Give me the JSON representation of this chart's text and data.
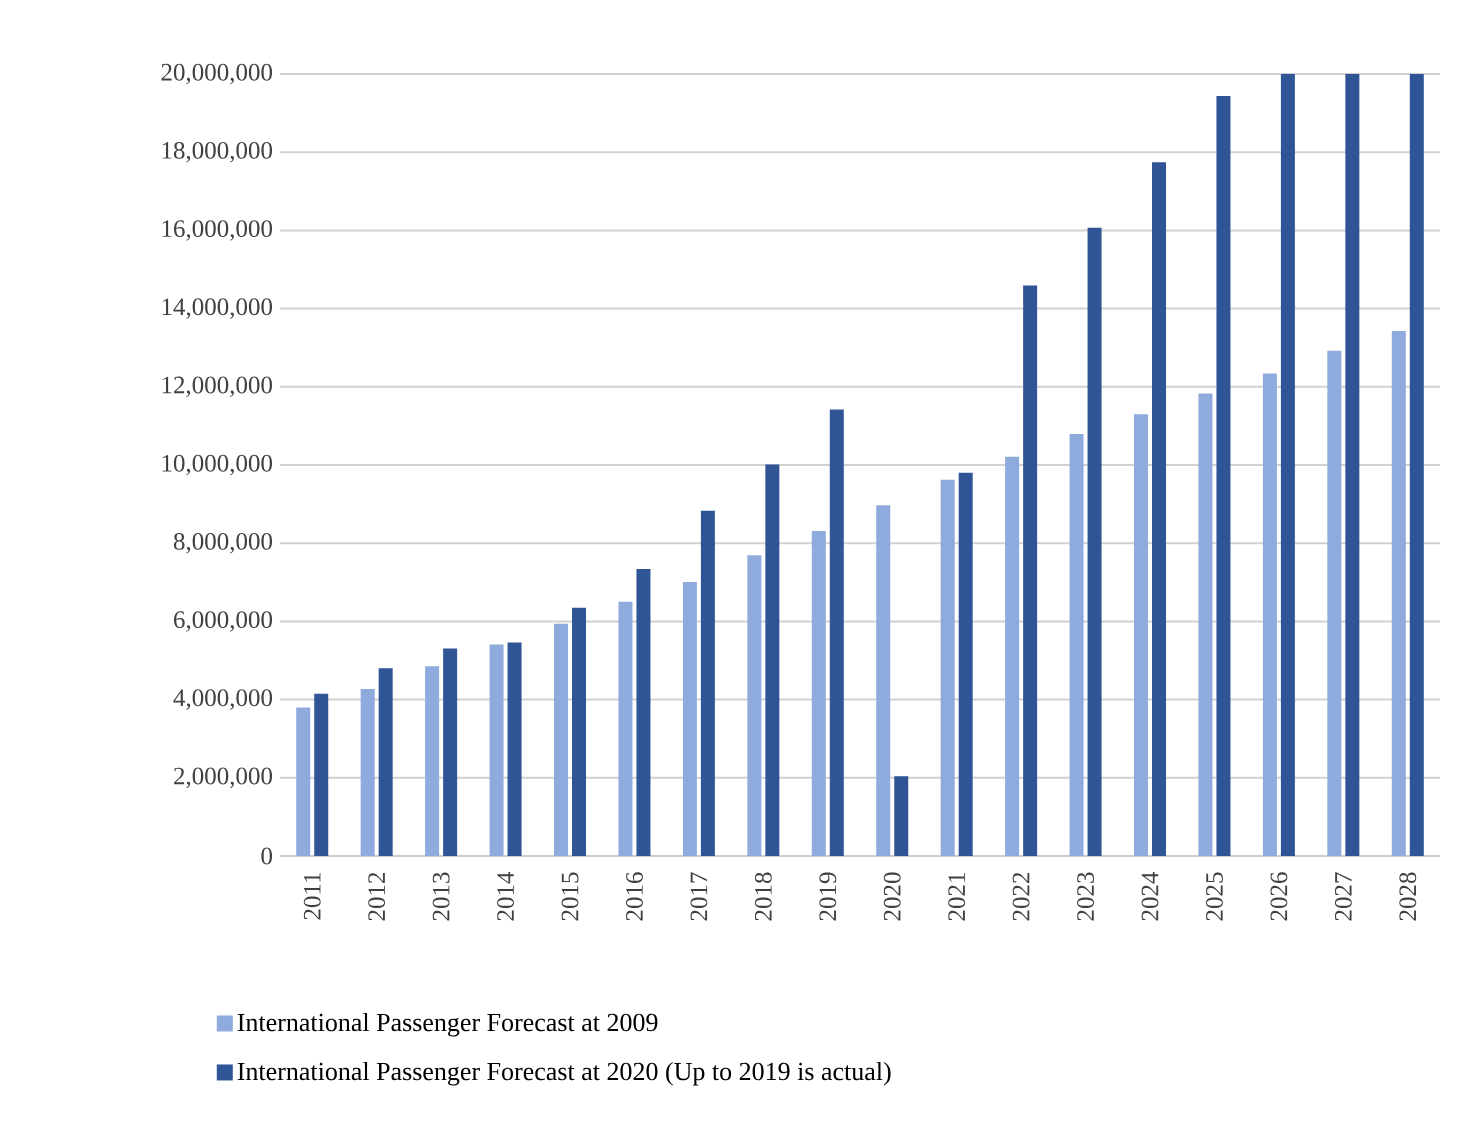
{
  "chart_data": {
    "type": "bar",
    "categories": [
      "2011",
      "2012",
      "2013",
      "2014",
      "2015",
      "2016",
      "2017",
      "2018",
      "2019",
      "2020",
      "2021",
      "2022",
      "2023",
      "2024",
      "2025",
      "2026",
      "2027",
      "2028"
    ],
    "series": [
      {
        "name": "International Passenger Forecast at 2009",
        "color": "#8faadc",
        "values": [
          3800000,
          4270000,
          4850000,
          5410000,
          5940000,
          6500000,
          7010000,
          7690000,
          8310000,
          8970000,
          9620000,
          10210000,
          10790000,
          11300000,
          11830000,
          12340000,
          12920000,
          13430000
        ]
      },
      {
        "name": "International Passenger Forecast at 2020 (Up to 2019 is actual)",
        "color": "#2f5597",
        "values": [
          4150000,
          4800000,
          5310000,
          5460000,
          6350000,
          7340000,
          8830000,
          10010000,
          11420000,
          2040000,
          9800000,
          14590000,
          16070000,
          17740000,
          19440000,
          20000000,
          20000000,
          20000000
        ]
      }
    ],
    "ylim": [
      0,
      20000000
    ],
    "yticks": [
      0,
      {
        "value": 2000000,
        "label": "2,000,000"
      },
      {
        "value": 4000000,
        "label": "4,000,000"
      },
      {
        "value": 6000000,
        "label": "6,000,000"
      },
      {
        "value": 8000000,
        "label": "8,000,000"
      },
      {
        "value": 10000000,
        "label": "10,000,000"
      },
      {
        "value": 12000000,
        "label": "12,000,000"
      },
      {
        "value": 14000000,
        "label": "14,000,000"
      },
      {
        "value": 16000000,
        "label": "16,000,000"
      },
      {
        "value": 18000000,
        "label": "18,000,000"
      },
      {
        "value": 20000000,
        "label": "20,000,000"
      }
    ],
    "grid": "y",
    "legend": "bottom"
  }
}
